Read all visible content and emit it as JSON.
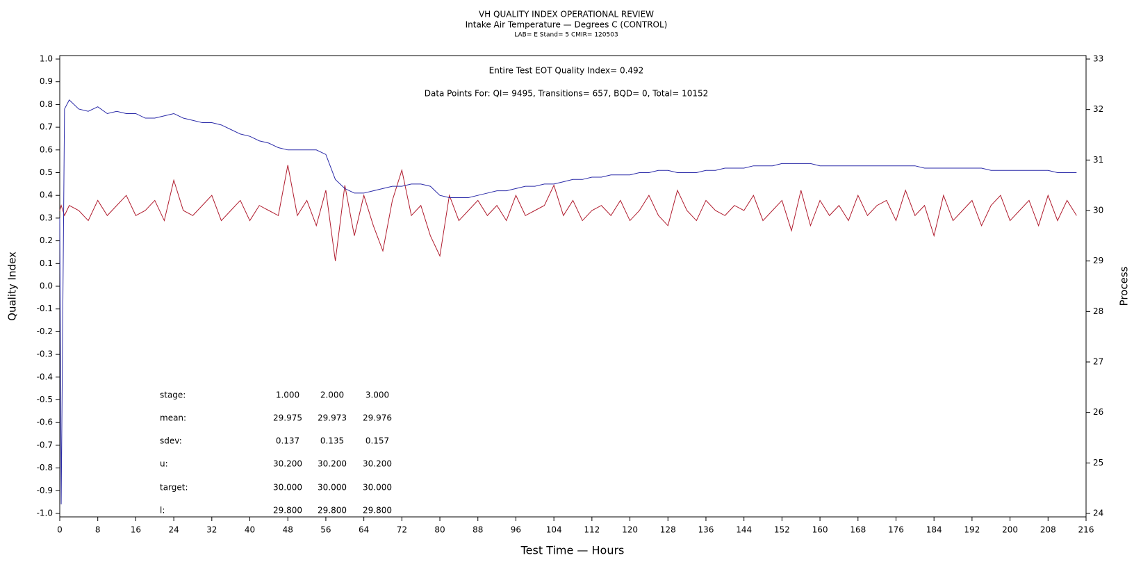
{
  "chart_data": {
    "type": "line",
    "title": "VH QUALITY INDEX OPERATIONAL REVIEW",
    "subtitle": "Intake Air Temperature — Degrees C (CONTROL)",
    "subsubtitle": "LAB= E Stand= 5 CMIR= 120503",
    "annotations": [
      "Entire Test EOT Quality Index=   0.492",
      "Data Points For: QI=  9495, Transitions=    657, BQD=      0, Total=  10152"
    ],
    "stats": [
      {
        "label": "stage:",
        "values": [
          "1.000",
          "2.000",
          "3.000"
        ]
      },
      {
        "label": "mean:",
        "values": [
          "29.975",
          "29.973",
          "29.976"
        ]
      },
      {
        "label": "sdev:",
        "values": [
          "0.137",
          "0.135",
          "0.157"
        ]
      },
      {
        "label": "u:",
        "values": [
          "30.200",
          "30.200",
          "30.200"
        ]
      },
      {
        "label": "target:",
        "values": [
          "30.000",
          "30.000",
          "30.000"
        ]
      },
      {
        "label": "l:",
        "values": [
          "29.800",
          "29.800",
          "29.800"
        ]
      }
    ],
    "xlabel": "Test Time — Hours",
    "ylabel": "Quality Index",
    "y2label": "Process",
    "xlim": [
      0,
      216
    ],
    "xticks": [
      0,
      8,
      16,
      24,
      32,
      40,
      48,
      56,
      64,
      72,
      80,
      88,
      96,
      104,
      112,
      120,
      128,
      136,
      144,
      152,
      160,
      168,
      176,
      184,
      192,
      200,
      208,
      216
    ],
    "ylim": [
      -1,
      1
    ],
    "yticks": [
      {
        "value": -1,
        "label": "-1.0"
      },
      -0.9,
      -0.8,
      -0.7,
      -0.6,
      -0.5,
      -0.4,
      -0.3,
      -0.2,
      -0.1,
      {
        "value": 0,
        "label": "0.0"
      },
      0.1,
      0.2,
      0.3,
      0.4,
      0.5,
      0.6,
      0.7,
      0.8,
      0.9,
      {
        "value": 1,
        "label": "1.0"
      }
    ],
    "y2lim": [
      24,
      33
    ],
    "y2ticks": [
      24,
      25,
      26,
      27,
      28,
      29,
      30,
      31,
      32,
      33
    ],
    "x": [
      0,
      0.3,
      1,
      2,
      4,
      6,
      8,
      10,
      12,
      14,
      16,
      18,
      20,
      22,
      24,
      26,
      28,
      30,
      32,
      34,
      36,
      38,
      40,
      42,
      44,
      46,
      48,
      50,
      52,
      54,
      56,
      58,
      60,
      62,
      64,
      66,
      68,
      70,
      72,
      74,
      76,
      78,
      80,
      82,
      84,
      86,
      88,
      90,
      92,
      94,
      96,
      98,
      100,
      102,
      104,
      106,
      108,
      110,
      112,
      114,
      116,
      118,
      120,
      122,
      124,
      126,
      128,
      130,
      132,
      134,
      136,
      138,
      140,
      142,
      144,
      146,
      148,
      150,
      152,
      154,
      156,
      158,
      160,
      162,
      164,
      166,
      168,
      170,
      172,
      174,
      176,
      178,
      180,
      182,
      184,
      186,
      188,
      190,
      192,
      194,
      196,
      198,
      200,
      202,
      204,
      206,
      208,
      210,
      212,
      214
    ],
    "series": [
      {
        "color": "#b01c2e",
        "axis": "y2",
        "values": [
          30.0,
          30.1,
          29.9,
          30.1,
          30.0,
          29.8,
          30.2,
          29.9,
          30.1,
          30.3,
          29.9,
          30.0,
          30.2,
          29.8,
          30.6,
          30.0,
          29.9,
          30.1,
          30.3,
          29.8,
          30.0,
          30.2,
          29.8,
          30.1,
          30.0,
          29.9,
          30.9,
          29.9,
          30.2,
          29.7,
          30.4,
          29.0,
          30.5,
          29.5,
          30.3,
          29.7,
          29.2,
          30.2,
          30.8,
          29.9,
          30.1,
          29.5,
          29.1,
          30.3,
          29.8,
          30.0,
          30.2,
          29.9,
          30.1,
          29.8,
          30.3,
          29.9,
          30.0,
          30.1,
          30.5,
          29.9,
          30.2,
          29.8,
          30.0,
          30.1,
          29.9,
          30.2,
          29.8,
          30.0,
          30.3,
          29.9,
          29.7,
          30.4,
          30.0,
          29.8,
          30.2,
          30.0,
          29.9,
          30.1,
          30.0,
          30.3,
          29.8,
          30.0,
          30.2,
          29.6,
          30.4,
          29.7,
          30.2,
          29.9,
          30.1,
          29.8,
          30.3,
          29.9,
          30.1,
          30.2,
          29.8,
          30.4,
          29.9,
          30.1,
          29.5,
          30.3,
          29.8,
          30.0,
          30.2,
          29.7,
          30.1,
          30.3,
          29.8,
          30.0,
          30.2,
          29.7,
          30.3,
          29.8,
          30.2,
          29.9
        ]
      },
      {
        "color": "#2a2aa8",
        "axis": "y",
        "values": [
          0.3,
          -0.96,
          0.78,
          0.82,
          0.78,
          0.77,
          0.79,
          0.76,
          0.77,
          0.76,
          0.76,
          0.74,
          0.74,
          0.75,
          0.76,
          0.74,
          0.73,
          0.72,
          0.72,
          0.71,
          0.69,
          0.67,
          0.66,
          0.64,
          0.63,
          0.61,
          0.6,
          0.6,
          0.6,
          0.6,
          0.58,
          0.47,
          0.43,
          0.41,
          0.41,
          0.42,
          0.43,
          0.44,
          0.44,
          0.45,
          0.45,
          0.44,
          0.4,
          0.39,
          0.39,
          0.39,
          0.4,
          0.41,
          0.42,
          0.42,
          0.43,
          0.44,
          0.44,
          0.45,
          0.45,
          0.46,
          0.47,
          0.47,
          0.48,
          0.48,
          0.49,
          0.49,
          0.49,
          0.5,
          0.5,
          0.51,
          0.51,
          0.5,
          0.5,
          0.5,
          0.51,
          0.51,
          0.52,
          0.52,
          0.52,
          0.53,
          0.53,
          0.53,
          0.54,
          0.54,
          0.54,
          0.54,
          0.53,
          0.53,
          0.53,
          0.53,
          0.53,
          0.53,
          0.53,
          0.53,
          0.53,
          0.53,
          0.53,
          0.52,
          0.52,
          0.52,
          0.52,
          0.52,
          0.52,
          0.52,
          0.51,
          0.51,
          0.51,
          0.51,
          0.51,
          0.51,
          0.51,
          0.5,
          0.5,
          0.5
        ]
      }
    ]
  }
}
